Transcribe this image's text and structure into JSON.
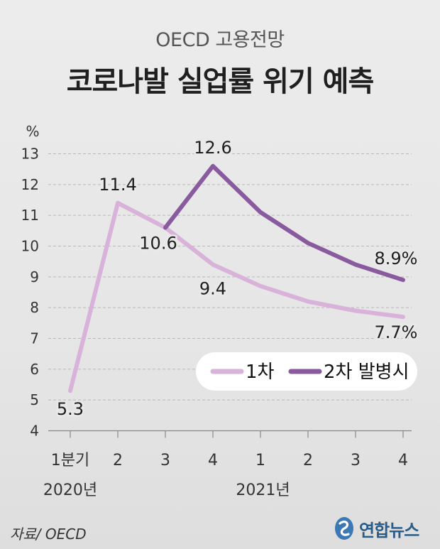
{
  "header": {
    "subtitle": "OECD 고용전망",
    "title": "코로나발 실업률 위기 예측"
  },
  "footer": {
    "source": "자료/ OECD",
    "logo_text": "연합뉴스"
  },
  "chart_data": {
    "type": "line",
    "subtitle": "OECD 고용전망",
    "title": "코로나발 실업률 위기 예측",
    "ylabel": "%",
    "ylim": [
      4,
      13
    ],
    "yticks": [
      4,
      5,
      6,
      7,
      8,
      9,
      10,
      11,
      12,
      13
    ],
    "categories": [
      "1분기",
      "2",
      "3",
      "4",
      "1",
      "2",
      "3",
      "4"
    ],
    "year_labels": [
      "2020년",
      "2021년"
    ],
    "grid": true,
    "legend_position": "bottom-right",
    "series": [
      {
        "name": "1차",
        "color": "#d9b2d9",
        "x": [
          0,
          1,
          2,
          3,
          4,
          5,
          6,
          7
        ],
        "values": [
          5.3,
          11.4,
          10.6,
          9.4,
          8.7,
          8.2,
          7.9,
          7.7
        ],
        "labels": [
          "5.3",
          "11.4",
          "10.6",
          "9.4",
          null,
          null,
          null,
          "7.7%"
        ]
      },
      {
        "name": "2차 발병시",
        "color": "#8a5a9f",
        "x": [
          2,
          3,
          4,
          5,
          6,
          7
        ],
        "values": [
          10.6,
          12.6,
          11.1,
          10.1,
          9.4,
          8.9
        ],
        "labels": [
          null,
          "12.6",
          null,
          null,
          null,
          "8.9%"
        ]
      }
    ]
  }
}
